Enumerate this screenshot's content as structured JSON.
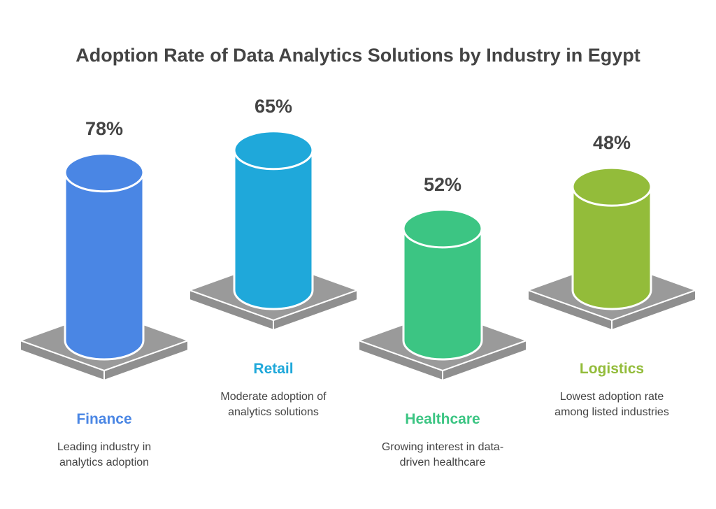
{
  "chart_data": {
    "type": "bar",
    "style": "3d-cylinder",
    "title": "Adoption Rate of Data Analytics Solutions by Industry in Egypt",
    "categories": [
      "Finance",
      "Retail",
      "Healthcare",
      "Logistics"
    ],
    "values": [
      78,
      65,
      52,
      48
    ],
    "value_labels": [
      "78%",
      "65%",
      "52%",
      "48%"
    ],
    "descriptions": [
      [
        "Leading industry in",
        "analytics adoption"
      ],
      [
        "Moderate adoption of",
        "analytics solutions"
      ],
      [
        "Growing interest in data-",
        "driven healthcare"
      ],
      [
        "Lowest adoption rate",
        "among listed industries"
      ]
    ],
    "colors": [
      "#4a86e4",
      "#1fa8da",
      "#3cc583",
      "#93bc3a"
    ],
    "platform_color": "#9a9a9a"
  }
}
